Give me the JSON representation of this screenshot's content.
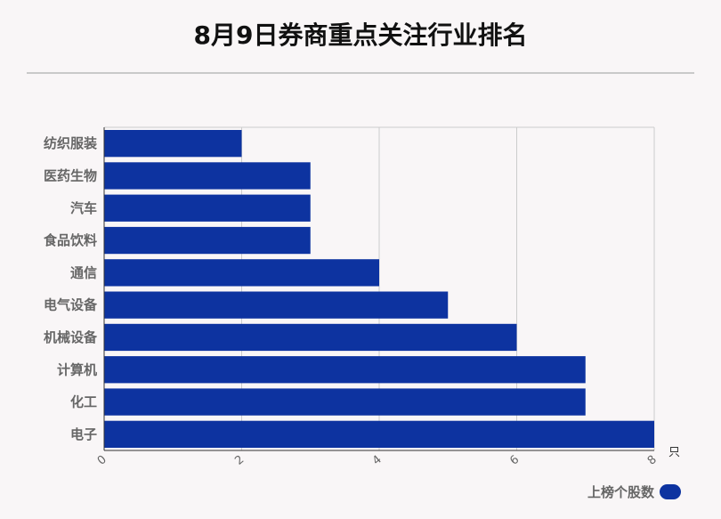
{
  "title": "8月9日券商重点关注行业排名",
  "colors": {
    "bar": "#0d33a0",
    "grid": "#cccccc",
    "label": "#666666",
    "background": "#f9f6f7"
  },
  "legend": {
    "label": "上榜个股数"
  },
  "chart_data": {
    "type": "bar",
    "orientation": "horizontal",
    "title": "8月9日券商重点关注行业排名",
    "categories": [
      "纺织服装",
      "医药生物",
      "汽车",
      "食品饮料",
      "通信",
      "电气设备",
      "机械设备",
      "计算机",
      "化工",
      "电子"
    ],
    "series": [
      {
        "name": "上榜个股数",
        "values": [
          2,
          3,
          3,
          3,
          4,
          5,
          6,
          7,
          7,
          8
        ]
      }
    ],
    "xlim": [
      0,
      8
    ],
    "x_ticks": [
      "0",
      "2",
      "4",
      "6",
      "8"
    ],
    "x_unit": "只",
    "grid": true,
    "legend_position": "bottom-right"
  }
}
